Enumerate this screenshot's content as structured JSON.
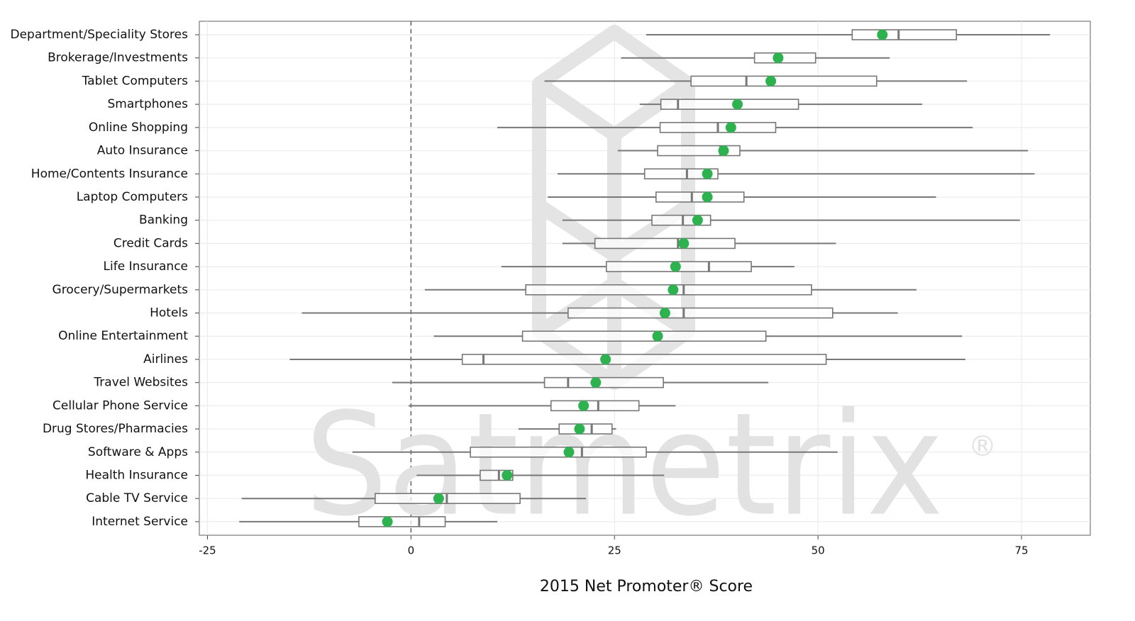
{
  "chart_data": {
    "type": "boxplot",
    "x_label": "2015 Net Promoter® Score",
    "watermark": "Satmetrix",
    "watermark_mark": "®",
    "categories": [
      "Department/Speciality Stores",
      "Brokerage/Investments",
      "Tablet Computers",
      "Smartphones",
      "Online Shopping",
      "Auto Insurance",
      "Home/Contents Insurance",
      "Laptop Computers",
      "Banking",
      "Credit Cards",
      "Life Insurance",
      "Grocery/Supermarkets",
      "Hotels",
      "Online Entertainment",
      "Airlines",
      "Travel Websites",
      "Cellular Phone Service",
      "Drug Stores/Pharmacies",
      "Software & Apps",
      "Health Insurance",
      "Cable TV Service",
      "Internet Service"
    ],
    "min": [
      28.9,
      25.8,
      16.4,
      28.1,
      10.6,
      25.4,
      18.0,
      16.8,
      18.6,
      18.6,
      11.1,
      1.7,
      -13.4,
      2.8,
      -14.9,
      -2.3,
      -0.3,
      13.2,
      -7.2,
      0.7,
      -20.8,
      -21.1
    ],
    "q1": [
      54.2,
      42.2,
      34.4,
      30.7,
      30.6,
      30.3,
      28.7,
      30.1,
      29.6,
      22.6,
      24.0,
      14.1,
      19.3,
      13.7,
      6.3,
      16.4,
      17.2,
      18.2,
      7.3,
      8.5,
      -4.4,
      -6.4
    ],
    "median": [
      59.9,
      45.0,
      41.2,
      32.8,
      37.7,
      38.0,
      33.9,
      34.5,
      33.4,
      32.8,
      36.6,
      33.5,
      33.5,
      30.0,
      8.9,
      19.3,
      23.0,
      22.2,
      21.0,
      10.8,
      4.4,
      1.0
    ],
    "q3": [
      67.0,
      49.7,
      57.2,
      47.6,
      44.8,
      40.4,
      37.7,
      40.9,
      36.8,
      39.8,
      41.8,
      49.2,
      51.8,
      43.6,
      51.0,
      31.0,
      28.0,
      24.7,
      28.9,
      12.5,
      13.4,
      4.2
    ],
    "max": [
      78.5,
      58.8,
      68.3,
      62.8,
      69.0,
      75.8,
      76.6,
      64.5,
      74.8,
      52.2,
      47.1,
      62.1,
      59.8,
      67.7,
      68.1,
      43.9,
      32.5,
      25.2,
      52.4,
      31.1,
      21.5,
      10.6
    ],
    "mean": [
      57.9,
      45.1,
      44.2,
      40.1,
      39.3,
      38.4,
      36.4,
      36.4,
      35.2,
      33.5,
      32.5,
      32.2,
      31.2,
      30.3,
      23.9,
      22.7,
      21.2,
      20.7,
      19.4,
      11.8,
      3.4,
      -2.9
    ],
    "box_color": "#777777",
    "mean_color": "#2db24f",
    "xlim": [
      -26,
      83.45
    ],
    "xticks": [
      -25,
      0,
      25,
      50,
      75
    ],
    "refline": 0,
    "grid": true
  }
}
